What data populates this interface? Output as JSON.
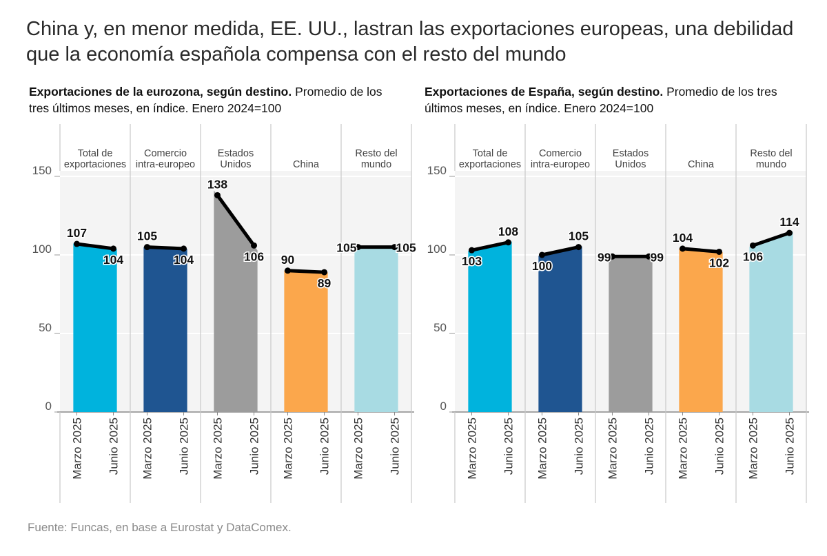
{
  "title": "China y, en menor medida, EE. UU., lastran las exportaciones europeas, una debilidad que la economía española compensa con el resto del mundo",
  "source": "Fuente: Funcas, en base a Eurostat y DataComex.",
  "chart_data": [
    {
      "type": "bar",
      "title_bold": "Exportaciones de la eurozona, según destino.",
      "subtitle": "Promedio de los tres últimos meses, en índice. Enero 2024=100",
      "ylim": [
        0,
        150
      ],
      "yticks": [
        0,
        50,
        100,
        150
      ],
      "x_labels": [
        "Marzo 2025",
        "Junio 2025"
      ],
      "grid": true,
      "categories": [
        {
          "name": [
            "Total de",
            "exportaciones"
          ],
          "values": [
            107,
            104
          ],
          "color": "#00b3dd"
        },
        {
          "name": [
            "Comercio",
            "intra-europeo"
          ],
          "values": [
            105,
            104
          ],
          "color": "#1f5591"
        },
        {
          "name": [
            "Estados",
            "Unidos"
          ],
          "values": [
            138,
            106
          ],
          "color": "#9c9c9c"
        },
        {
          "name": [
            "China"
          ],
          "values": [
            90,
            89
          ],
          "color": "#fba74c"
        },
        {
          "name": [
            "Resto del",
            "mundo"
          ],
          "values": [
            105,
            105
          ],
          "color": "#a8dbe3"
        }
      ]
    },
    {
      "type": "bar",
      "title_bold": "Exportaciones de España, según destino.",
      "subtitle": "Promedio de los tres últimos meses, en índice. Enero 2024=100",
      "ylim": [
        0,
        150
      ],
      "yticks": [
        0,
        50,
        100,
        150
      ],
      "x_labels": [
        "Marzo 2025",
        "Junio 2025"
      ],
      "grid": true,
      "categories": [
        {
          "name": [
            "Total de",
            "exportaciones"
          ],
          "values": [
            103,
            108
          ],
          "color": "#00b3dd"
        },
        {
          "name": [
            "Comercio",
            "intra-europeo"
          ],
          "values": [
            100,
            105
          ],
          "color": "#1f5591"
        },
        {
          "name": [
            "Estados",
            "Unidos"
          ],
          "values": [
            99,
            99
          ],
          "color": "#9c9c9c"
        },
        {
          "name": [
            "China"
          ],
          "values": [
            104,
            102
          ],
          "color": "#fba74c"
        },
        {
          "name": [
            "Resto del",
            "mundo"
          ],
          "values": [
            106,
            114
          ],
          "color": "#a8dbe3"
        }
      ]
    }
  ]
}
